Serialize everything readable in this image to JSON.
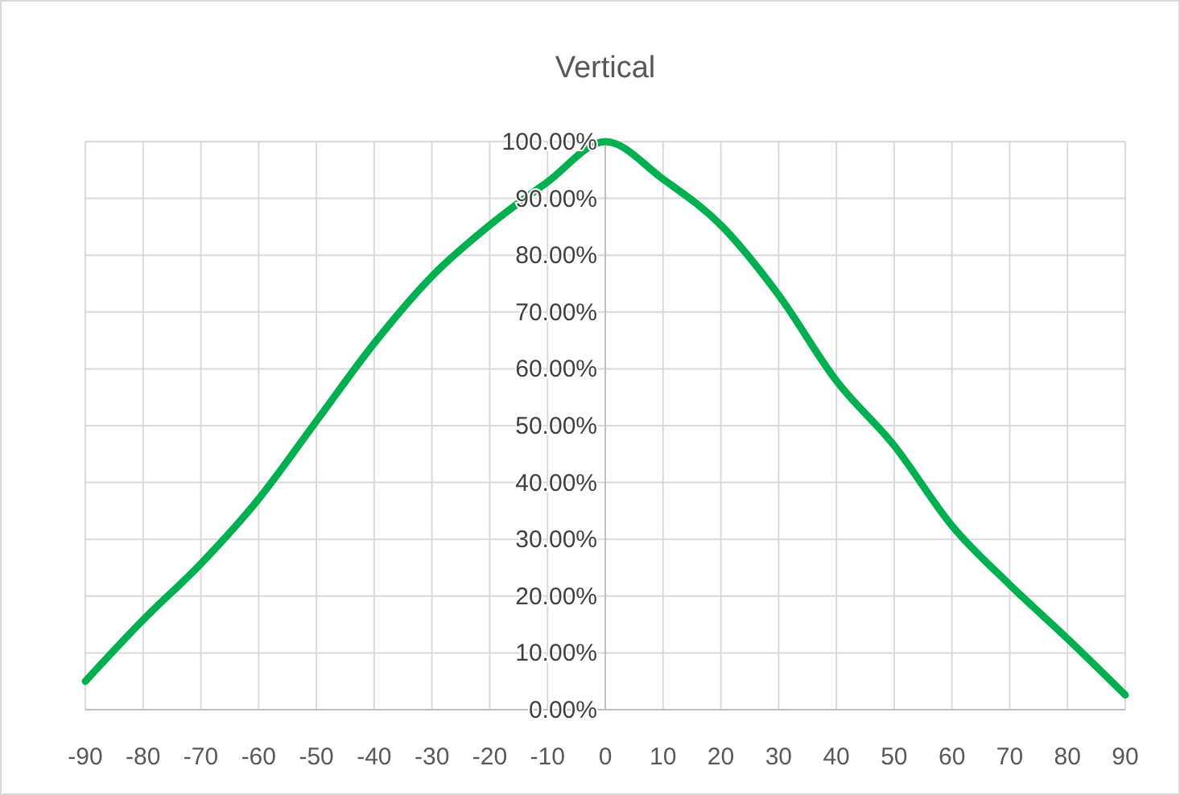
{
  "chart_data": {
    "type": "line",
    "title": "Vertical",
    "x": [
      -90,
      -80,
      -70,
      -60,
      -50,
      -40,
      -30,
      -20,
      -10,
      0,
      10,
      20,
      30,
      40,
      50,
      60,
      70,
      80,
      90
    ],
    "series": [
      {
        "color": "#00b050",
        "values": [
          5,
          15.8,
          25.7,
          37.1,
          50.8,
          64.5,
          76.3,
          85.3,
          92.9,
          100,
          93.4,
          85.3,
          73,
          57.9,
          46.5,
          32.4,
          22,
          12.5,
          2.6
        ]
      }
    ],
    "xlim": [
      -90,
      90
    ],
    "xticks": [
      -90,
      -80,
      -70,
      -60,
      -50,
      -40,
      -30,
      -20,
      -10,
      0,
      10,
      20,
      30,
      40,
      50,
      60,
      70,
      80,
      90
    ],
    "ylim": [
      0,
      100
    ],
    "yticks": [
      {
        "value": 0,
        "label": "0.00%"
      },
      {
        "value": 10,
        "label": "10.00%"
      },
      {
        "value": 20,
        "label": "20.00%"
      },
      {
        "value": 30,
        "label": "30.00%"
      },
      {
        "value": 40,
        "label": "40.00%"
      },
      {
        "value": 50,
        "label": "50.00%"
      },
      {
        "value": 60,
        "label": "60.00%"
      },
      {
        "value": 70,
        "label": "70.00%"
      },
      {
        "value": 80,
        "label": "80.00%"
      },
      {
        "value": 90,
        "label": "90.00%"
      },
      {
        "value": 100,
        "label": "100.00%"
      }
    ],
    "grid": true,
    "marker": "none",
    "line_style": "solid"
  }
}
